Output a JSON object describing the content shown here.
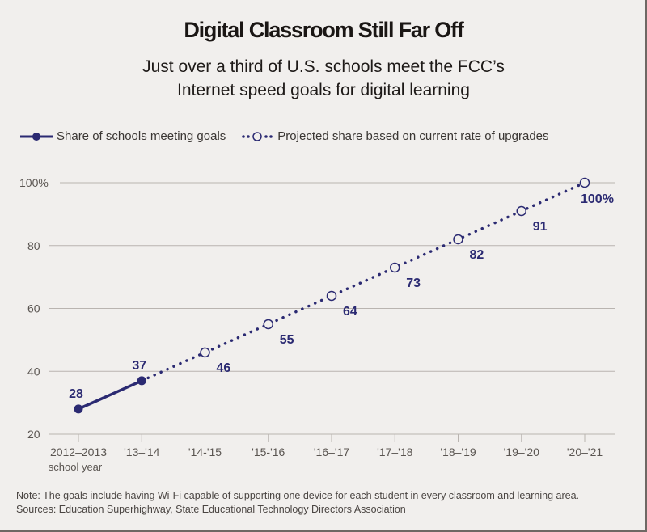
{
  "title": "Digital Classroom Still Far Off",
  "subtitle_line1": "Just over a third of U.S. schools meet the FCC’s",
  "subtitle_line2": "Internet speed goals for digital learning",
  "legend": {
    "actual": "Share of schools meeting goals",
    "projected": "Projected share based on current rate of upgrades"
  },
  "note": "Note: The goals include having Wi-Fi capable of supporting one device for each student in every classroom and learning area.",
  "sources": "Sources: Education Superhighway, State Educational Technology Directors Association",
  "colors": {
    "series": "#2b2a72",
    "grid": "#b9b4b0",
    "background": "#f1efed"
  },
  "chart_data": {
    "type": "line",
    "title": "Digital Classroom Still Far Off",
    "subtitle": "Just over a third of U.S. schools meet the FCC’s Internet speed goals for digital learning",
    "xlabel": "",
    "ylabel": "",
    "categories": [
      "2012–2013",
      "'13–'14",
      "'14-'15",
      "'15-'16",
      "'16–'17",
      "'17–'18",
      "'18–'19",
      "'19–'20",
      "'20–'21"
    ],
    "category_sublabel": "school year",
    "ylim": [
      20,
      100
    ],
    "yticks": [
      20,
      40,
      60,
      80,
      100
    ],
    "ytick_labels": [
      "20",
      "40",
      "60",
      "80",
      "100%"
    ],
    "grid": true,
    "legend_position": "top-left",
    "series": [
      {
        "name": "Share of schools meeting goals",
        "style": "solid",
        "marker": "filled-circle",
        "x_index": [
          0,
          1
        ],
        "values": [
          28,
          37
        ],
        "labels": [
          "28",
          "37"
        ]
      },
      {
        "name": "Projected share based on current rate of upgrades",
        "style": "dotted",
        "marker": "open-circle",
        "x_index": [
          1,
          2,
          3,
          4,
          5,
          6,
          7,
          8
        ],
        "values": [
          37,
          46,
          55,
          64,
          73,
          82,
          91,
          100
        ],
        "labels": [
          "",
          "46",
          "55",
          "64",
          "73",
          "82",
          "91",
          "100%"
        ]
      }
    ]
  }
}
